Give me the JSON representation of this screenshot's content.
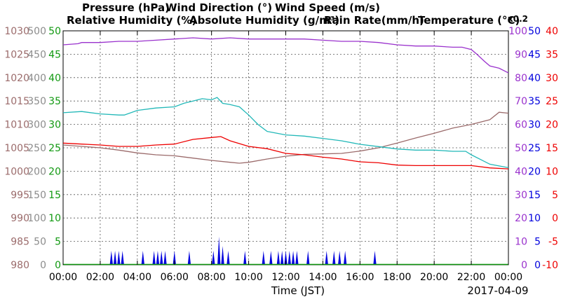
{
  "chart_data": {
    "type": "line",
    "legend": [
      {
        "text": "Pressure (hPa)",
        "color": "#9b6b6b"
      },
      {
        "text": "Wind Direction (°)",
        "color": "#8c8c8c"
      },
      {
        "text": "Wind Speed (m/s)",
        "color": "#119911"
      },
      {
        "text": "Relative Humidity (%)",
        "color": "#9a32cd"
      },
      {
        "text": "Absolute Humidity (g/m³)",
        "color": "#22b8b8"
      },
      {
        "text": "Rain Rate(mm/h)",
        "color": "#0000dd"
      },
      {
        "text": "Temperature (°C)",
        "color": "#ee0000"
      }
    ],
    "abs_humidity_multiplier": "x0.2",
    "axes": {
      "pressure": {
        "color": "#9b6b6b",
        "ticks": [
          "980",
          "985",
          "990",
          "995",
          "1000",
          "1005",
          "1010",
          "1015",
          "1020",
          "1025",
          "1030"
        ]
      },
      "wind_direction": {
        "color": "#8c8c8c",
        "ticks": [
          "0",
          "50",
          "100",
          "150",
          "200",
          "250",
          "300",
          "350",
          "400",
          "450",
          "500"
        ]
      },
      "wind_speed": {
        "color": "#119911",
        "ticks": [
          "0",
          "5",
          "10",
          "15",
          "20",
          "25",
          "30",
          "35",
          "40",
          "45",
          "50"
        ]
      },
      "relative_humidity": {
        "color": "#9a32cd",
        "ticks": [
          "0",
          "10",
          "20",
          "30",
          "40",
          "50",
          "60",
          "70",
          "80",
          "90",
          "100"
        ]
      },
      "rain_rate": {
        "color": "#0000dd",
        "ticks": [
          "0",
          "5",
          "10",
          "15",
          "20",
          "25",
          "30",
          "35",
          "40",
          "45",
          "50"
        ]
      },
      "temperature": {
        "color": "#ee0000",
        "ticks": [
          "-10",
          "-5",
          "0",
          "5",
          "10",
          "15",
          "20",
          "25",
          "30",
          "35",
          "40"
        ]
      }
    },
    "x_ticks": [
      "00:00",
      "02:00",
      "04:00",
      "06:00",
      "08:00",
      "10:00",
      "12:00",
      "14:00",
      "16:00",
      "18:00",
      "20:00",
      "22:00",
      "00:00"
    ],
    "xlabel": "Time (JST)",
    "date_label": "2017-04-09",
    "x_range_hours": [
      0,
      24
    ],
    "grid": true,
    "series": {
      "pressure_hpa": [
        [
          0,
          1005.6
        ],
        [
          1,
          1005.3
        ],
        [
          2,
          1005.0
        ],
        [
          3,
          1004.5
        ],
        [
          4,
          1003.9
        ],
        [
          5,
          1003.5
        ],
        [
          6,
          1003.3
        ],
        [
          7,
          1002.8
        ],
        [
          8,
          1002.3
        ],
        [
          9,
          1001.9
        ],
        [
          9.5,
          1001.7
        ],
        [
          10,
          1001.9
        ],
        [
          11,
          1002.6
        ],
        [
          12,
          1003.2
        ],
        [
          13,
          1003.6
        ],
        [
          14,
          1003.7
        ],
        [
          15,
          1003.8
        ],
        [
          16,
          1004.3
        ],
        [
          17,
          1005.0
        ],
        [
          18,
          1006.0
        ],
        [
          19,
          1007.1
        ],
        [
          20,
          1008.1
        ],
        [
          21,
          1009.2
        ],
        [
          22,
          1010.0
        ],
        [
          23,
          1011.0
        ],
        [
          23.5,
          1012.6
        ],
        [
          24,
          1012.4
        ]
      ],
      "relative_humidity_pct": [
        [
          0,
          94
        ],
        [
          0.8,
          94.5
        ],
        [
          1,
          95
        ],
        [
          2,
          95
        ],
        [
          3,
          95.5
        ],
        [
          4,
          95.5
        ],
        [
          5,
          96
        ],
        [
          6,
          96.5
        ],
        [
          7,
          97
        ],
        [
          8,
          96.5
        ],
        [
          9,
          97
        ],
        [
          10,
          96.5
        ],
        [
          11,
          96.5
        ],
        [
          12,
          96.5
        ],
        [
          13,
          96.5
        ],
        [
          14,
          96
        ],
        [
          15,
          95.5
        ],
        [
          16,
          95.5
        ],
        [
          17,
          95
        ],
        [
          18,
          94
        ],
        [
          19,
          93.5
        ],
        [
          20,
          93.5
        ],
        [
          21,
          93
        ],
        [
          21.5,
          93
        ],
        [
          22,
          92
        ],
        [
          22.3,
          90
        ],
        [
          22.7,
          87
        ],
        [
          23,
          85
        ],
        [
          23.5,
          84
        ],
        [
          24,
          82
        ]
      ],
      "absolute_humidity": [
        [
          0,
          65
        ],
        [
          1,
          65.5
        ],
        [
          2,
          64.5
        ],
        [
          3,
          64
        ],
        [
          3.3,
          64
        ],
        [
          4,
          66
        ],
        [
          5,
          67
        ],
        [
          6,
          67.5
        ],
        [
          6.5,
          69
        ],
        [
          7,
          70
        ],
        [
          7.5,
          71
        ],
        [
          8,
          70.5
        ],
        [
          8.3,
          71.5
        ],
        [
          8.6,
          69
        ],
        [
          9,
          68.5
        ],
        [
          9.5,
          67.5
        ],
        [
          10,
          64
        ],
        [
          10.5,
          60
        ],
        [
          11,
          57
        ],
        [
          12,
          55.5
        ],
        [
          13,
          55
        ],
        [
          14,
          54
        ],
        [
          15,
          53
        ],
        [
          16,
          51.5
        ],
        [
          17,
          50.5
        ],
        [
          18,
          49.5
        ],
        [
          19,
          49
        ],
        [
          20,
          49
        ],
        [
          21,
          48.5
        ],
        [
          21.7,
          48.5
        ],
        [
          22,
          47
        ],
        [
          22.5,
          45
        ],
        [
          23,
          43
        ],
        [
          24,
          41.5
        ]
      ],
      "temperature_c": [
        [
          0,
          16.0
        ],
        [
          1,
          15.8
        ],
        [
          2,
          15.6
        ],
        [
          3,
          15.3
        ],
        [
          4,
          15.3
        ],
        [
          5,
          15.6
        ],
        [
          6,
          15.8
        ],
        [
          7,
          16.8
        ],
        [
          8,
          17.2
        ],
        [
          8.5,
          17.4
        ],
        [
          9,
          16.5
        ],
        [
          10,
          15.3
        ],
        [
          11,
          14.8
        ],
        [
          12,
          13.8
        ],
        [
          13,
          13.5
        ],
        [
          14,
          13.0
        ],
        [
          15,
          12.6
        ],
        [
          16,
          12.0
        ],
        [
          17,
          11.8
        ],
        [
          18,
          11.3
        ],
        [
          19,
          11.2
        ],
        [
          20,
          11.2
        ],
        [
          21,
          11.2
        ],
        [
          22,
          11.2
        ],
        [
          23,
          10.7
        ],
        [
          24,
          10.5
        ]
      ],
      "rain_rate_mmh": [
        [
          2.6,
          3
        ],
        [
          2.8,
          3
        ],
        [
          3.0,
          3
        ],
        [
          3.2,
          3
        ],
        [
          4.3,
          3
        ],
        [
          4.9,
          3
        ],
        [
          5.1,
          3
        ],
        [
          5.3,
          3
        ],
        [
          5.5,
          3
        ],
        [
          6.0,
          3
        ],
        [
          6.8,
          3
        ],
        [
          8.1,
          3
        ],
        [
          8.4,
          6
        ],
        [
          8.6,
          4
        ],
        [
          8.9,
          3
        ],
        [
          9.8,
          3
        ],
        [
          10.8,
          3
        ],
        [
          11.2,
          3
        ],
        [
          11.6,
          3
        ],
        [
          11.8,
          3
        ],
        [
          12.0,
          3
        ],
        [
          12.2,
          3
        ],
        [
          12.4,
          3
        ],
        [
          12.6,
          3
        ],
        [
          13.2,
          3
        ],
        [
          14.2,
          3
        ],
        [
          14.6,
          3
        ],
        [
          14.9,
          3
        ],
        [
          15.2,
          3
        ],
        [
          16.8,
          3
        ]
      ]
    }
  }
}
